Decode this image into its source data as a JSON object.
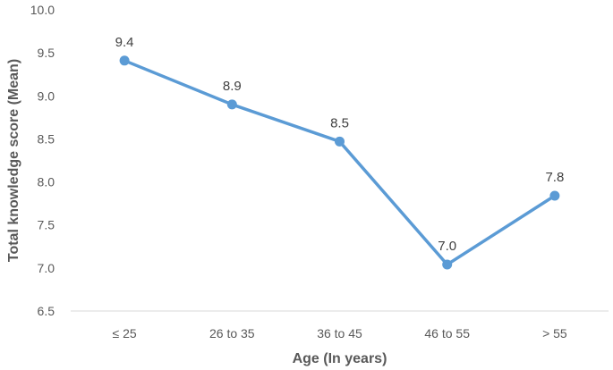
{
  "chart_data": {
    "type": "line",
    "categories": [
      "≤ 25",
      "26 to 35",
      "36 to 45",
      "46 to 55",
      "> 55"
    ],
    "series": [
      {
        "values": [
          9.41,
          8.9,
          8.47,
          7.04,
          7.84
        ],
        "labels": [
          "9.4",
          "8.9",
          "8.5",
          "7.0",
          "7.8"
        ]
      }
    ],
    "xlabel": "Age (In years)",
    "ylabel": "Total knowledge score (Mean)",
    "ylim": [
      6.5,
      10.0
    ],
    "yticks": [
      "6.5",
      "7.0",
      "7.5",
      "8.0",
      "8.5",
      "9.0",
      "9.5",
      "10.0"
    ],
    "grid": false,
    "legend": "none",
    "colors": {
      "line": "#5b9bd5",
      "axis": "#d9d9d9"
    }
  }
}
